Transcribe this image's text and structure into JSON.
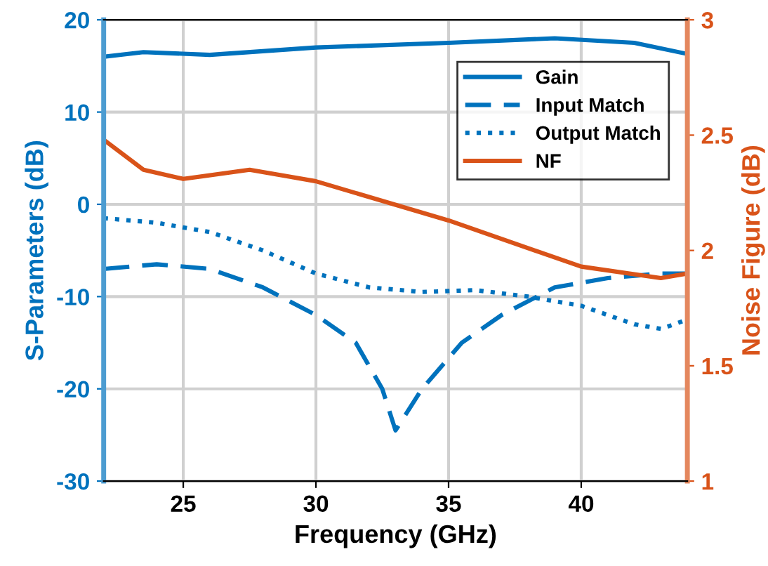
{
  "chart_data": {
    "type": "line",
    "xlabel": "Frequency (GHz)",
    "ylabel": "S-Parameters (dB)",
    "y2label": "Noise Figure (dB)",
    "xlim": [
      22,
      44
    ],
    "xticks": [
      25,
      30,
      35,
      40
    ],
    "ylim": [
      -30,
      20
    ],
    "yticks": [
      -30,
      -20,
      -10,
      0,
      10,
      20
    ],
    "y2lim": [
      1,
      3
    ],
    "y2ticks": [
      1,
      1.5,
      2,
      2.5,
      3
    ],
    "grid": true,
    "legend": "top right",
    "series": [
      {
        "name": "Gain",
        "color": "#0072bd",
        "line_style": "solid",
        "x": [
          22,
          23.5,
          26,
          30,
          35,
          39,
          42,
          44
        ],
        "values": [
          16,
          16.5,
          16.2,
          17,
          17.5,
          18,
          17.5,
          16.3
        ]
      },
      {
        "name": "Input Match",
        "color": "#0072bd",
        "line_style": "dashed",
        "x": [
          22,
          24,
          26,
          28,
          30,
          31.5,
          32.5,
          33,
          34,
          35.5,
          37,
          39,
          41,
          43,
          44
        ],
        "values": [
          -7,
          -6.5,
          -7,
          -9,
          -12,
          -15,
          -20,
          -24.5,
          -20,
          -15,
          -12,
          -9,
          -8,
          -7.5,
          -7.5
        ]
      },
      {
        "name": "Output Match",
        "color": "#0072bd",
        "line_style": "dotted",
        "x": [
          22,
          24,
          26,
          28,
          30,
          32,
          34,
          36,
          38,
          40,
          42,
          43,
          44
        ],
        "values": [
          -1.5,
          -2,
          -3,
          -5,
          -7.5,
          -9,
          -9.5,
          -9.3,
          -10,
          -11,
          -13,
          -13.5,
          -12.5
        ]
      },
      {
        "name": "NF",
        "color": "#d95319",
        "line_style": "solid",
        "axis": "y2",
        "x": [
          22,
          23.5,
          25,
          27.5,
          30,
          35,
          40,
          43,
          44
        ],
        "values": [
          2.48,
          2.35,
          2.31,
          2.35,
          2.3,
          2.13,
          1.93,
          1.88,
          1.9
        ]
      }
    ]
  }
}
